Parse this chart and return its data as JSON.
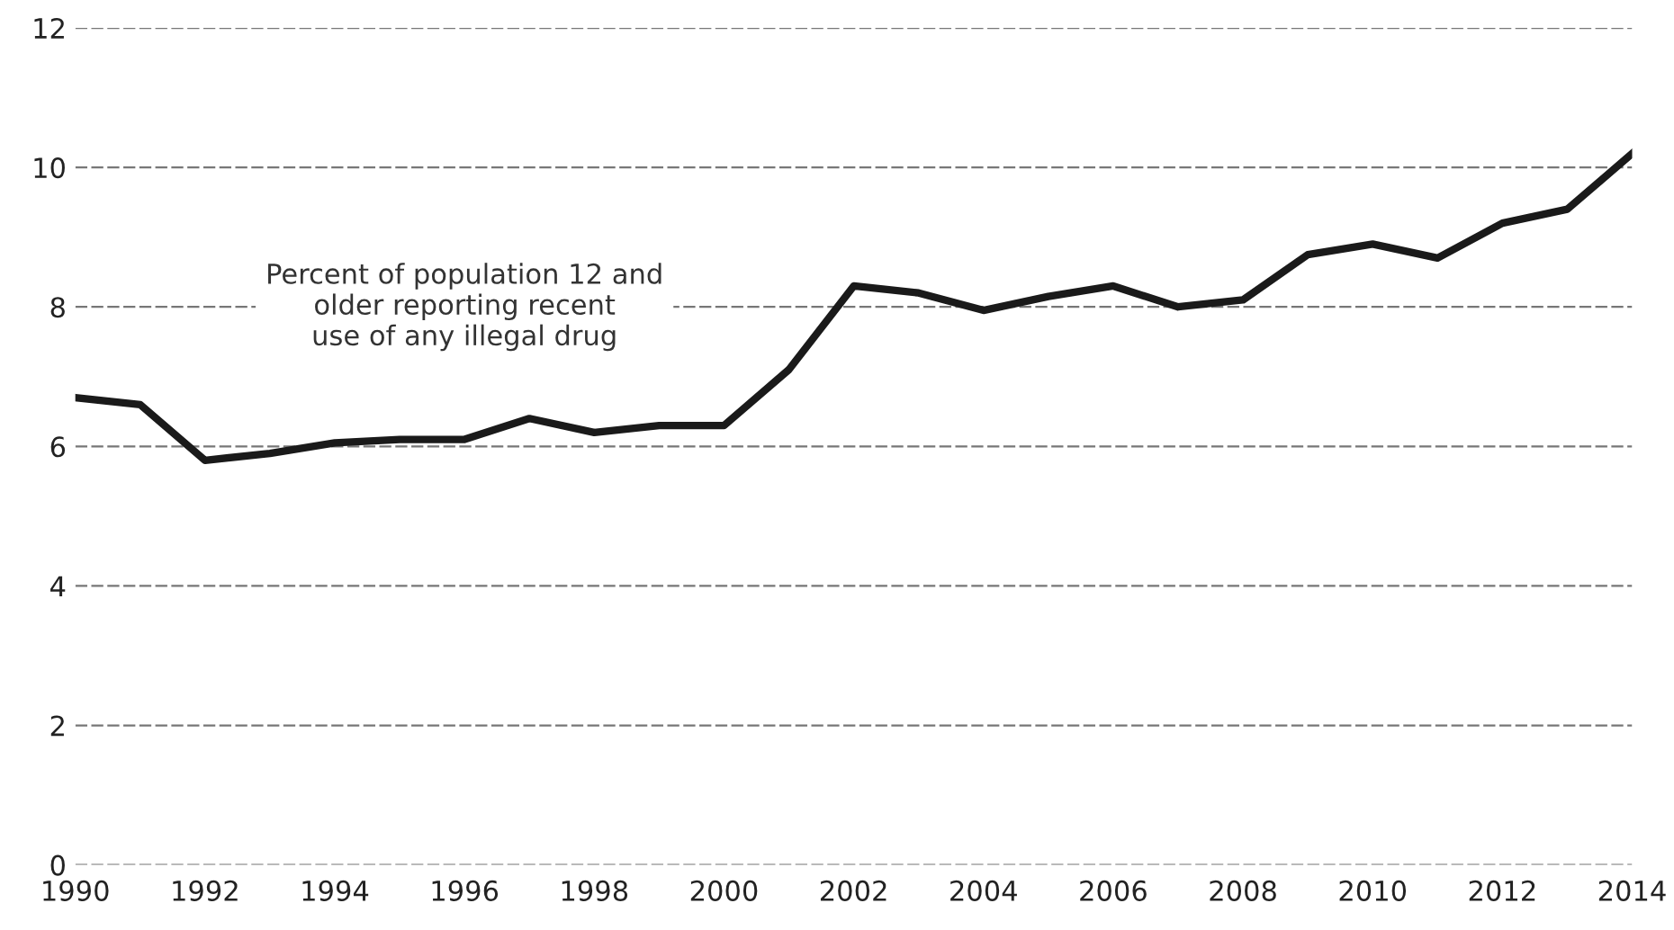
{
  "chart_data": {
    "type": "line",
    "x": [
      1990,
      1991,
      1992,
      1993,
      1994,
      1995,
      1996,
      1997,
      1998,
      1999,
      2000,
      2001,
      2002,
      2003,
      2004,
      2005,
      2006,
      2007,
      2008,
      2009,
      2010,
      2011,
      2012,
      2013,
      2014
    ],
    "series": [
      {
        "color": "#1a1a1a",
        "values": [
          6.7,
          6.6,
          5.8,
          5.9,
          6.05,
          6.1,
          6.1,
          6.4,
          6.2,
          6.3,
          6.3,
          7.1,
          8.3,
          8.2,
          7.95,
          8.15,
          8.3,
          8.0,
          8.1,
          8.75,
          8.9,
          8.7,
          9.2,
          9.4,
          10.2
        ]
      }
    ],
    "annotations": [
      "Percent of population 12 and\nolder reporting recent\nuse of any illegal drug"
    ],
    "xlim": [
      1990,
      2014
    ],
    "xticks": [
      1990,
      1992,
      1994,
      1996,
      1998,
      2000,
      2002,
      2004,
      2006,
      2008,
      2010,
      2012,
      2014
    ],
    "ylim": [
      0,
      12
    ],
    "yticks": [
      0,
      2,
      4,
      6,
      8,
      10,
      12
    ],
    "grid": "y",
    "line_style": "solid",
    "marker": "none"
  }
}
